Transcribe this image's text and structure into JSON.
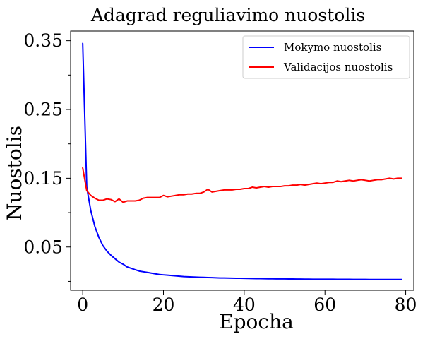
{
  "chart_data": {
    "type": "line",
    "title": "Adagrad reguliavimo nuostolis",
    "xlabel": "Epocha",
    "ylabel": "Nuostolis",
    "xlim": [
      -3,
      82
    ],
    "ylim": [
      -0.0129,
      0.364
    ],
    "xticks": [
      0,
      20,
      40,
      60,
      80
    ],
    "xtick_labels": [
      "0",
      "20",
      "40",
      "60",
      "80"
    ],
    "yticks_major": [
      0.05,
      0.15,
      0.25,
      0.35
    ],
    "ytick_labels": [
      "0.05",
      "0.15",
      "0.25",
      "0.35"
    ],
    "yticks_minor": [
      0.0,
      0.1,
      0.2,
      0.3
    ],
    "grid": false,
    "legend_position": "top-right",
    "x": [
      0,
      1,
      2,
      3,
      4,
      5,
      6,
      7,
      8,
      9,
      10,
      11,
      12,
      13,
      14,
      15,
      16,
      17,
      18,
      19,
      20,
      21,
      22,
      23,
      24,
      25,
      26,
      27,
      28,
      29,
      30,
      31,
      32,
      33,
      34,
      35,
      36,
      37,
      38,
      39,
      40,
      41,
      42,
      43,
      44,
      45,
      46,
      47,
      48,
      49,
      50,
      51,
      52,
      53,
      54,
      55,
      56,
      57,
      58,
      59,
      60,
      61,
      62,
      63,
      64,
      65,
      66,
      67,
      68,
      69,
      70,
      71,
      72,
      73,
      74,
      75,
      76,
      77,
      78,
      79
    ],
    "series": [
      {
        "name": "Mokymo nuostolis",
        "color": "#0000ff",
        "values": [
          0.346,
          0.137,
          0.103,
          0.08,
          0.064,
          0.052,
          0.044,
          0.038,
          0.033,
          0.028,
          0.025,
          0.021,
          0.019,
          0.017,
          0.015,
          0.014,
          0.013,
          0.012,
          0.011,
          0.01,
          0.0095,
          0.009,
          0.0085,
          0.008,
          0.0075,
          0.007,
          0.0068,
          0.0065,
          0.0062,
          0.006,
          0.0058,
          0.0056,
          0.0054,
          0.0052,
          0.005,
          0.0049,
          0.0048,
          0.0047,
          0.0046,
          0.0045,
          0.0044,
          0.0043,
          0.0042,
          0.0041,
          0.004,
          0.0039,
          0.0038,
          0.0038,
          0.0037,
          0.0036,
          0.0036,
          0.0035,
          0.0035,
          0.0034,
          0.0034,
          0.0033,
          0.0033,
          0.0032,
          0.0032,
          0.0032,
          0.0031,
          0.0031,
          0.0031,
          0.003,
          0.003,
          0.003,
          0.003,
          0.0029,
          0.0029,
          0.0029,
          0.0029,
          0.0028,
          0.0028,
          0.0028,
          0.0028,
          0.0028,
          0.0028,
          0.0027,
          0.0027,
          0.0027
        ]
      },
      {
        "name": "Validacijos nuostolis",
        "color": "#ff0000",
        "values": [
          0.165,
          0.132,
          0.125,
          0.121,
          0.118,
          0.118,
          0.12,
          0.119,
          0.116,
          0.12,
          0.115,
          0.117,
          0.117,
          0.117,
          0.118,
          0.121,
          0.122,
          0.122,
          0.122,
          0.122,
          0.125,
          0.123,
          0.124,
          0.125,
          0.126,
          0.126,
          0.127,
          0.127,
          0.128,
          0.128,
          0.13,
          0.134,
          0.13,
          0.131,
          0.132,
          0.133,
          0.133,
          0.133,
          0.134,
          0.134,
          0.135,
          0.135,
          0.137,
          0.136,
          0.137,
          0.138,
          0.137,
          0.138,
          0.138,
          0.138,
          0.139,
          0.139,
          0.14,
          0.14,
          0.141,
          0.14,
          0.141,
          0.142,
          0.143,
          0.142,
          0.143,
          0.144,
          0.144,
          0.146,
          0.145,
          0.146,
          0.147,
          0.146,
          0.147,
          0.148,
          0.147,
          0.146,
          0.147,
          0.148,
          0.148,
          0.149,
          0.15,
          0.149,
          0.15,
          0.15
        ]
      }
    ]
  }
}
